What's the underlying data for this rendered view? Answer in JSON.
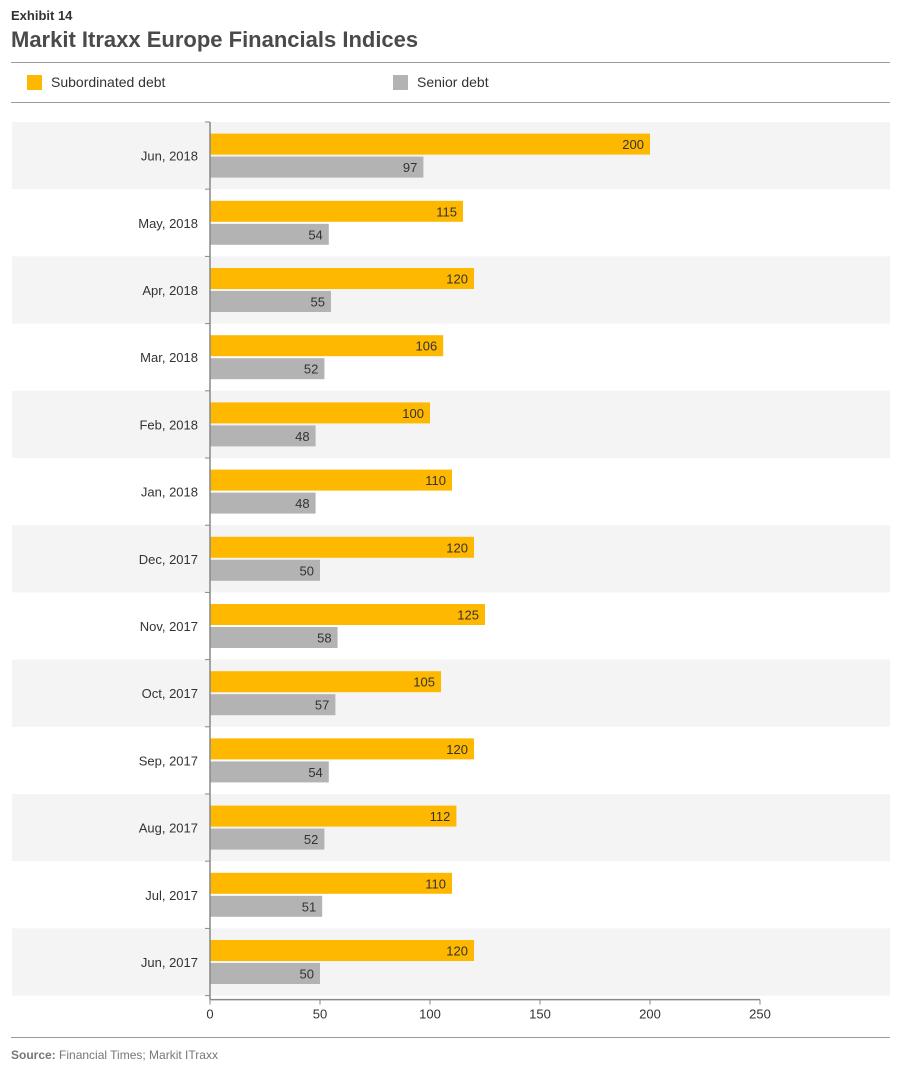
{
  "header": {
    "exhibit": "Exhibit 14",
    "title": "Markit Itraxx Europe Financials Indices"
  },
  "legend": {
    "items": [
      {
        "label": "Subordinated debt",
        "color": "#ffb800"
      },
      {
        "label": "Senior debt",
        "color": "#b3b3b3"
      }
    ]
  },
  "chart_data": {
    "type": "bar",
    "orientation": "horizontal",
    "title": "Markit Itraxx Europe Financials Indices",
    "xlabel": "",
    "ylabel": "",
    "xlim": [
      0,
      250
    ],
    "xticks": [
      0,
      50,
      100,
      150,
      200,
      250
    ],
    "grid": false,
    "legend_position": "top-left",
    "categories": [
      "Jun, 2018",
      "May, 2018",
      "Apr, 2018",
      "Mar, 2018",
      "Feb, 2018",
      "Jan, 2018",
      "Dec, 2017",
      "Nov, 2017",
      "Oct, 2017",
      "Sep, 2017",
      "Aug, 2017",
      "Jul, 2017",
      "Jun, 2017"
    ],
    "series": [
      {
        "name": "Subordinated debt",
        "color": "#ffb800",
        "values": [
          200,
          115,
          120,
          106,
          100,
          110,
          120,
          125,
          105,
          120,
          112,
          110,
          120
        ]
      },
      {
        "name": "Senior debt",
        "color": "#b3b3b3",
        "values": [
          97,
          54,
          55,
          52,
          48,
          48,
          50,
          58,
          57,
          54,
          52,
          51,
          50
        ]
      }
    ],
    "band_color": "#f4f4f4"
  },
  "footer": {
    "source_label": "Source:",
    "source_text": " Financial Times; Markit ITraxx"
  }
}
